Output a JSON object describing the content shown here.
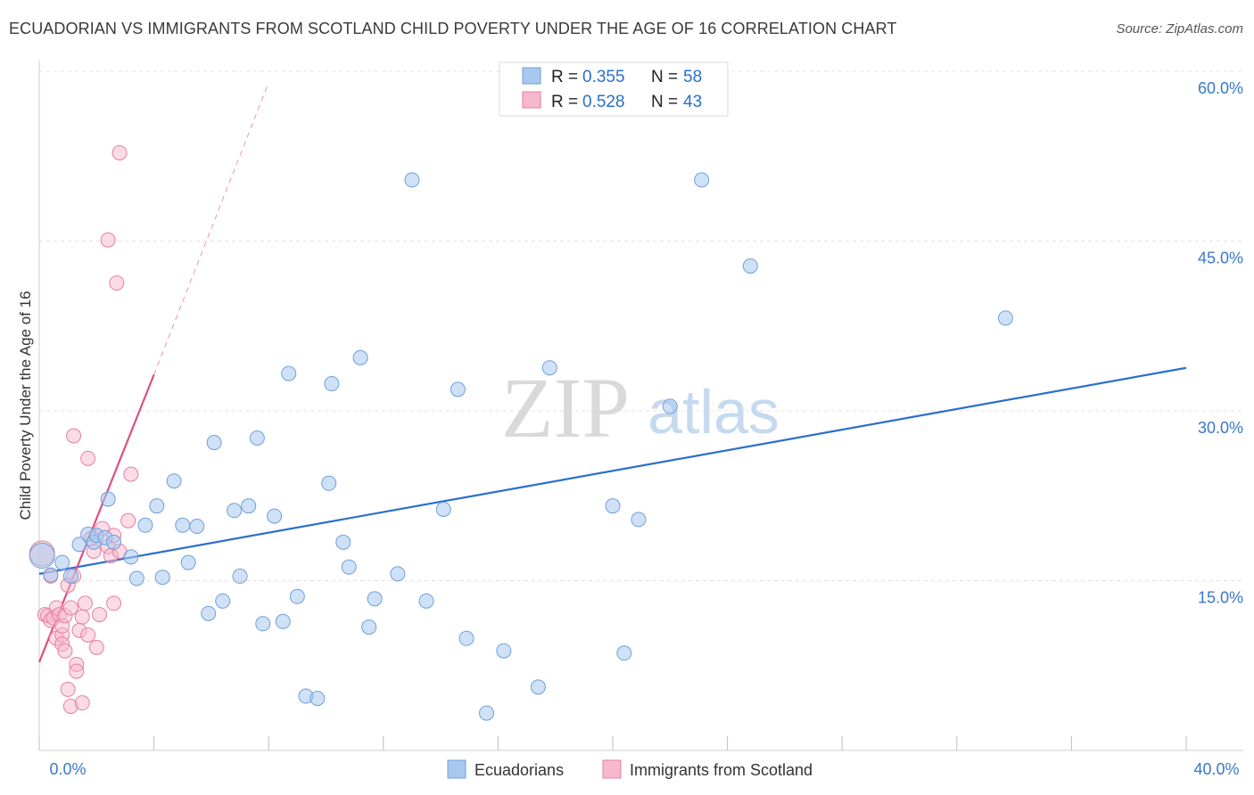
{
  "chart_data": {
    "type": "scatter",
    "title": "ECUADORIAN VS IMMIGRANTS FROM SCOTLAND CHILD POVERTY UNDER THE AGE OF 16 CORRELATION CHART",
    "source": "Source: ZipAtlas.com",
    "xlabel": "",
    "ylabel": "Child Poverty Under the Age of 16",
    "xlim": [
      0,
      40
    ],
    "ylim": [
      0,
      60
    ],
    "x_tick_labels": [
      "0.0%",
      "40.0%"
    ],
    "y_ticks": [
      15,
      30,
      45,
      60
    ],
    "y_tick_labels": [
      "15.0%",
      "30.0%",
      "45.0%",
      "60.0%"
    ],
    "grid": true,
    "watermark": {
      "zip": "ZIP",
      "atlas": "atlas"
    },
    "legend": [
      {
        "r_label": "R =",
        "r_value": "0.355",
        "n_label": "N =",
        "n_value": "58"
      },
      {
        "r_label": "R =",
        "r_value": "0.528",
        "n_label": "N =",
        "n_value": "43"
      }
    ],
    "series": [
      {
        "name": "Ecuadorians",
        "color": "#a8c8f0",
        "stroke": "#6f9fd8",
        "line_color": "#2a6fcd",
        "trend": {
          "x0": 0,
          "y0": 15.6,
          "x1": 40,
          "y1": 33.8
        },
        "points": [
          [
            0.1,
            17.2
          ],
          [
            0.4,
            15.5
          ],
          [
            0.8,
            16.6
          ],
          [
            1.1,
            15.4
          ],
          [
            1.4,
            18.2
          ],
          [
            1.7,
            19.1
          ],
          [
            1.9,
            18.4
          ],
          [
            2.0,
            19.0
          ],
          [
            2.3,
            18.8
          ],
          [
            2.4,
            22.2
          ],
          [
            2.6,
            18.4
          ],
          [
            3.2,
            17.1
          ],
          [
            3.4,
            15.2
          ],
          [
            3.7,
            19.9
          ],
          [
            4.1,
            21.6
          ],
          [
            4.3,
            15.3
          ],
          [
            4.7,
            23.8
          ],
          [
            5.0,
            19.9
          ],
          [
            5.2,
            16.6
          ],
          [
            5.5,
            19.8
          ],
          [
            5.9,
            12.1
          ],
          [
            6.1,
            27.2
          ],
          [
            6.4,
            13.2
          ],
          [
            6.8,
            21.2
          ],
          [
            7.0,
            15.4
          ],
          [
            7.3,
            21.6
          ],
          [
            7.6,
            27.6
          ],
          [
            7.8,
            11.2
          ],
          [
            8.2,
            20.7
          ],
          [
            8.5,
            11.4
          ],
          [
            8.7,
            33.3
          ],
          [
            9.0,
            13.6
          ],
          [
            9.3,
            4.8
          ],
          [
            9.7,
            4.6
          ],
          [
            10.1,
            23.6
          ],
          [
            10.2,
            32.4
          ],
          [
            10.6,
            18.4
          ],
          [
            10.8,
            16.2
          ],
          [
            11.2,
            34.7
          ],
          [
            11.5,
            10.9
          ],
          [
            11.7,
            13.4
          ],
          [
            12.5,
            15.6
          ],
          [
            13.0,
            50.4
          ],
          [
            13.5,
            13.2
          ],
          [
            14.1,
            21.3
          ],
          [
            14.6,
            31.9
          ],
          [
            14.9,
            9.9
          ],
          [
            15.6,
            3.3
          ],
          [
            16.2,
            8.8
          ],
          [
            17.4,
            5.6
          ],
          [
            17.8,
            33.8
          ],
          [
            20.0,
            21.6
          ],
          [
            20.4,
            8.6
          ],
          [
            20.9,
            20.4
          ],
          [
            22.0,
            30.4
          ],
          [
            23.1,
            50.4
          ],
          [
            24.8,
            42.8
          ],
          [
            33.7,
            38.2
          ]
        ]
      },
      {
        "name": "Immigrants from Scotland",
        "color": "#f7b7cc",
        "stroke": "#e57fa1",
        "line_color": "#e04d82",
        "trend": {
          "x0": 0,
          "y0": 7.8,
          "x1": 4.0,
          "y1": 33.2
        },
        "trend_ext": {
          "x0": 4.0,
          "y0": 33.2,
          "x1": 8.0,
          "y1": 59.0
        },
        "points": [
          [
            0.1,
            17.4
          ],
          [
            0.2,
            12.0
          ],
          [
            0.3,
            11.9
          ],
          [
            0.4,
            11.5
          ],
          [
            0.4,
            15.4
          ],
          [
            0.5,
            11.7
          ],
          [
            0.6,
            12.6
          ],
          [
            0.6,
            9.9
          ],
          [
            0.7,
            12.0
          ],
          [
            0.8,
            10.2
          ],
          [
            0.8,
            11.0
          ],
          [
            0.8,
            9.4
          ],
          [
            0.9,
            11.9
          ],
          [
            0.9,
            8.8
          ],
          [
            1.0,
            14.6
          ],
          [
            1.0,
            5.4
          ],
          [
            1.1,
            12.6
          ],
          [
            1.1,
            3.9
          ],
          [
            1.2,
            15.4
          ],
          [
            1.2,
            27.8
          ],
          [
            1.3,
            7.6
          ],
          [
            1.3,
            7.0
          ],
          [
            1.4,
            10.6
          ],
          [
            1.5,
            4.2
          ],
          [
            1.5,
            11.8
          ],
          [
            1.6,
            13.0
          ],
          [
            1.7,
            10.2
          ],
          [
            1.7,
            25.8
          ],
          [
            1.8,
            18.7
          ],
          [
            1.9,
            17.6
          ],
          [
            2.0,
            9.1
          ],
          [
            2.1,
            12.0
          ],
          [
            2.2,
            19.6
          ],
          [
            2.4,
            18.0
          ],
          [
            2.4,
            45.1
          ],
          [
            2.5,
            17.2
          ],
          [
            2.6,
            19.0
          ],
          [
            2.6,
            13.0
          ],
          [
            2.7,
            41.3
          ],
          [
            2.8,
            17.6
          ],
          [
            3.1,
            20.3
          ],
          [
            3.2,
            24.4
          ],
          [
            2.8,
            52.8
          ]
        ]
      }
    ]
  }
}
